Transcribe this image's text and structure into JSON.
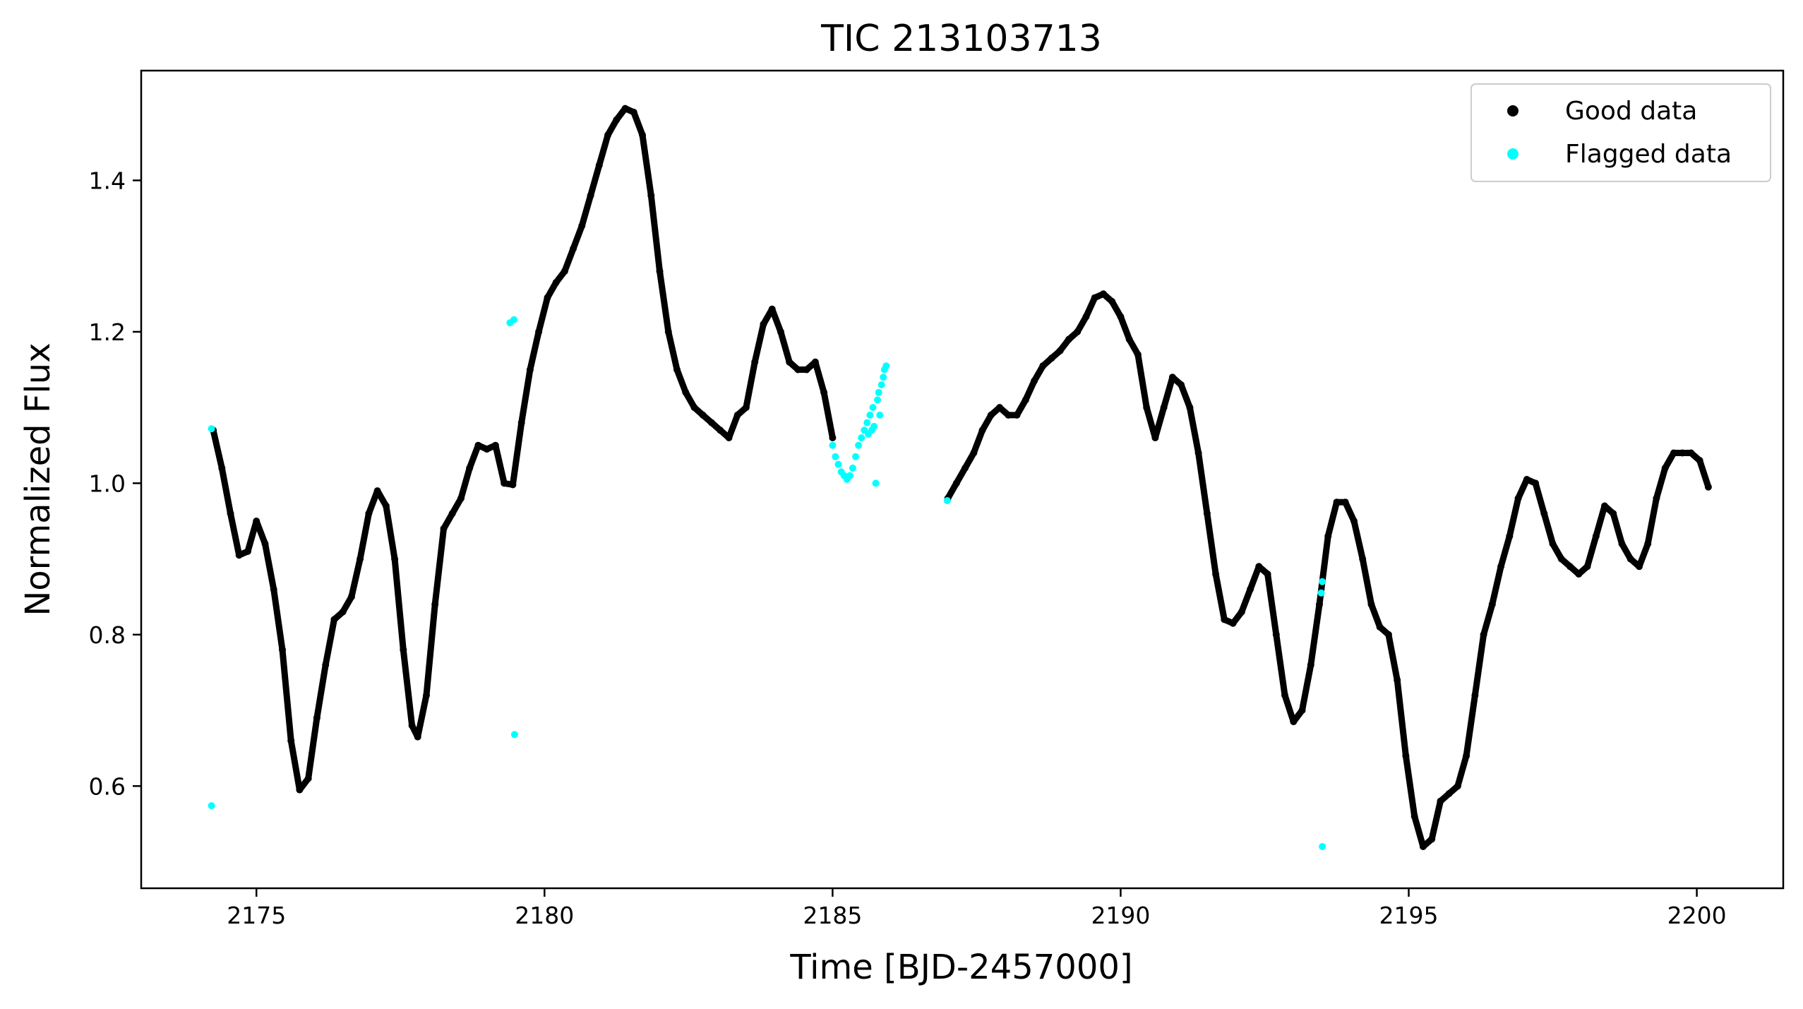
{
  "chart_data": {
    "type": "scatter",
    "title": "TIC 213103713",
    "xlabel": "Time [BJD-2457000]",
    "ylabel": "Normalized Flux",
    "xlim": [
      2173.0,
      2201.5
    ],
    "ylim": [
      0.465,
      1.545
    ],
    "x_ticks": [
      2175,
      2180,
      2185,
      2190,
      2195,
      2200
    ],
    "y_ticks": [
      0.6,
      0.8,
      1.0,
      1.2,
      1.4
    ],
    "grid": false,
    "legend_position": "top-right",
    "series": [
      {
        "name": "Good data",
        "color": "#000000",
        "segments": [
          [
            [
              2174.25,
              1.07
            ],
            [
              2174.4,
              1.02
            ],
            [
              2174.55,
              0.96
            ],
            [
              2174.7,
              0.905
            ],
            [
              2174.85,
              0.91
            ],
            [
              2175.0,
              0.95
            ],
            [
              2175.15,
              0.92
            ],
            [
              2175.3,
              0.86
            ],
            [
              2175.45,
              0.78
            ],
            [
              2175.6,
              0.66
            ],
            [
              2175.75,
              0.595
            ],
            [
              2175.9,
              0.61
            ],
            [
              2176.05,
              0.69
            ],
            [
              2176.2,
              0.76
            ],
            [
              2176.35,
              0.82
            ],
            [
              2176.5,
              0.83
            ],
            [
              2176.65,
              0.85
            ],
            [
              2176.8,
              0.9
            ],
            [
              2176.95,
              0.96
            ],
            [
              2177.1,
              0.99
            ],
            [
              2177.25,
              0.97
            ],
            [
              2177.4,
              0.9
            ],
            [
              2177.55,
              0.78
            ],
            [
              2177.7,
              0.68
            ],
            [
              2177.8,
              0.665
            ],
            [
              2177.95,
              0.72
            ],
            [
              2178.1,
              0.84
            ],
            [
              2178.25,
              0.94
            ],
            [
              2178.4,
              0.96
            ],
            [
              2178.55,
              0.98
            ],
            [
              2178.7,
              1.02
            ],
            [
              2178.85,
              1.05
            ],
            [
              2179.0,
              1.045
            ],
            [
              2179.15,
              1.05
            ],
            [
              2179.3,
              1.0
            ],
            [
              2179.45,
              0.998
            ],
            [
              2179.6,
              1.08
            ],
            [
              2179.75,
              1.15
            ],
            [
              2179.9,
              1.2
            ],
            [
              2180.05,
              1.245
            ],
            [
              2180.2,
              1.265
            ],
            [
              2180.35,
              1.28
            ],
            [
              2180.5,
              1.31
            ],
            [
              2180.65,
              1.34
            ],
            [
              2180.8,
              1.38
            ],
            [
              2180.95,
              1.42
            ],
            [
              2181.1,
              1.46
            ],
            [
              2181.25,
              1.48
            ],
            [
              2181.4,
              1.495
            ],
            [
              2181.55,
              1.49
            ],
            [
              2181.7,
              1.46
            ],
            [
              2181.85,
              1.38
            ],
            [
              2182.0,
              1.28
            ],
            [
              2182.15,
              1.2
            ],
            [
              2182.3,
              1.15
            ],
            [
              2182.45,
              1.12
            ],
            [
              2182.6,
              1.1
            ],
            [
              2182.75,
              1.09
            ],
            [
              2182.9,
              1.08
            ],
            [
              2183.05,
              1.07
            ],
            [
              2183.2,
              1.06
            ],
            [
              2183.35,
              1.09
            ],
            [
              2183.5,
              1.1
            ],
            [
              2183.65,
              1.16
            ],
            [
              2183.8,
              1.21
            ],
            [
              2183.95,
              1.23
            ],
            [
              2184.1,
              1.2
            ],
            [
              2184.25,
              1.16
            ],
            [
              2184.4,
              1.15
            ],
            [
              2184.55,
              1.15
            ],
            [
              2184.7,
              1.16
            ],
            [
              2184.85,
              1.12
            ],
            [
              2185.0,
              1.06
            ]
          ],
          [
            [
              2187.0,
              0.98
            ],
            [
              2187.15,
              1.0
            ],
            [
              2187.3,
              1.02
            ],
            [
              2187.45,
              1.04
            ],
            [
              2187.6,
              1.07
            ],
            [
              2187.75,
              1.09
            ],
            [
              2187.9,
              1.1
            ],
            [
              2188.05,
              1.09
            ],
            [
              2188.2,
              1.09
            ],
            [
              2188.35,
              1.11
            ],
            [
              2188.5,
              1.135
            ],
            [
              2188.65,
              1.155
            ],
            [
              2188.8,
              1.165
            ],
            [
              2188.95,
              1.175
            ],
            [
              2189.1,
              1.19
            ],
            [
              2189.25,
              1.2
            ],
            [
              2189.4,
              1.22
            ],
            [
              2189.55,
              1.245
            ],
            [
              2189.7,
              1.25
            ],
            [
              2189.85,
              1.24
            ],
            [
              2190.0,
              1.22
            ],
            [
              2190.15,
              1.19
            ],
            [
              2190.3,
              1.17
            ],
            [
              2190.45,
              1.1
            ],
            [
              2190.6,
              1.06
            ],
            [
              2190.75,
              1.1
            ],
            [
              2190.9,
              1.14
            ],
            [
              2191.05,
              1.13
            ],
            [
              2191.2,
              1.1
            ],
            [
              2191.35,
              1.04
            ],
            [
              2191.5,
              0.96
            ],
            [
              2191.65,
              0.88
            ],
            [
              2191.8,
              0.82
            ],
            [
              2191.95,
              0.815
            ],
            [
              2192.1,
              0.83
            ],
            [
              2192.25,
              0.86
            ],
            [
              2192.4,
              0.89
            ],
            [
              2192.55,
              0.88
            ],
            [
              2192.7,
              0.8
            ],
            [
              2192.85,
              0.72
            ],
            [
              2193.0,
              0.685
            ],
            [
              2193.15,
              0.7
            ],
            [
              2193.3,
              0.76
            ],
            [
              2193.45,
              0.84
            ],
            [
              2193.6,
              0.93
            ],
            [
              2193.75,
              0.975
            ],
            [
              2193.9,
              0.975
            ],
            [
              2194.05,
              0.95
            ],
            [
              2194.2,
              0.9
            ],
            [
              2194.35,
              0.84
            ],
            [
              2194.5,
              0.81
            ],
            [
              2194.65,
              0.8
            ],
            [
              2194.8,
              0.74
            ],
            [
              2194.95,
              0.64
            ],
            [
              2195.1,
              0.56
            ],
            [
              2195.25,
              0.52
            ],
            [
              2195.4,
              0.53
            ],
            [
              2195.55,
              0.58
            ],
            [
              2195.7,
              0.59
            ],
            [
              2195.85,
              0.6
            ],
            [
              2196.0,
              0.64
            ],
            [
              2196.15,
              0.72
            ],
            [
              2196.3,
              0.8
            ],
            [
              2196.45,
              0.84
            ],
            [
              2196.6,
              0.89
            ],
            [
              2196.75,
              0.93
            ],
            [
              2196.9,
              0.98
            ],
            [
              2197.05,
              1.005
            ],
            [
              2197.2,
              1.0
            ],
            [
              2197.35,
              0.96
            ],
            [
              2197.5,
              0.92
            ],
            [
              2197.65,
              0.9
            ],
            [
              2197.8,
              0.89
            ],
            [
              2197.95,
              0.88
            ],
            [
              2198.1,
              0.89
            ],
            [
              2198.25,
              0.93
            ],
            [
              2198.4,
              0.97
            ],
            [
              2198.55,
              0.96
            ],
            [
              2198.7,
              0.92
            ],
            [
              2198.85,
              0.9
            ],
            [
              2199.0,
              0.89
            ],
            [
              2199.15,
              0.92
            ],
            [
              2199.3,
              0.98
            ],
            [
              2199.45,
              1.02
            ],
            [
              2199.6,
              1.04
            ],
            [
              2199.75,
              1.04
            ],
            [
              2199.9,
              1.04
            ],
            [
              2200.05,
              1.03
            ],
            [
              2200.2,
              0.995
            ]
          ]
        ]
      },
      {
        "name": "Flagged data",
        "color": "#00ffff",
        "points": [
          [
            2174.22,
            1.072
          ],
          [
            2174.22,
            0.574
          ],
          [
            2179.4,
            1.212
          ],
          [
            2179.47,
            1.216
          ],
          [
            2179.48,
            0.668
          ],
          [
            2185.0,
            1.05
          ],
          [
            2185.05,
            1.035
          ],
          [
            2185.1,
            1.025
          ],
          [
            2185.15,
            1.015
          ],
          [
            2185.2,
            1.01
          ],
          [
            2185.25,
            1.005
          ],
          [
            2185.3,
            1.01
          ],
          [
            2185.35,
            1.02
          ],
          [
            2185.4,
            1.035
          ],
          [
            2185.45,
            1.05
          ],
          [
            2185.5,
            1.06
          ],
          [
            2185.55,
            1.07
          ],
          [
            2185.6,
            1.08
          ],
          [
            2185.62,
            1.065
          ],
          [
            2185.65,
            1.09
          ],
          [
            2185.68,
            1.07
          ],
          [
            2185.7,
            1.1
          ],
          [
            2185.72,
            1.075
          ],
          [
            2185.75,
            1.0
          ],
          [
            2185.78,
            1.11
          ],
          [
            2185.8,
            1.12
          ],
          [
            2185.82,
            1.09
          ],
          [
            2185.85,
            1.13
          ],
          [
            2185.88,
            1.14
          ],
          [
            2185.9,
            1.15
          ],
          [
            2185.93,
            1.155
          ],
          [
            2186.99,
            0.977
          ],
          [
            2193.48,
            0.855
          ],
          [
            2193.5,
            0.87
          ],
          [
            2193.5,
            0.52
          ]
        ]
      }
    ]
  }
}
